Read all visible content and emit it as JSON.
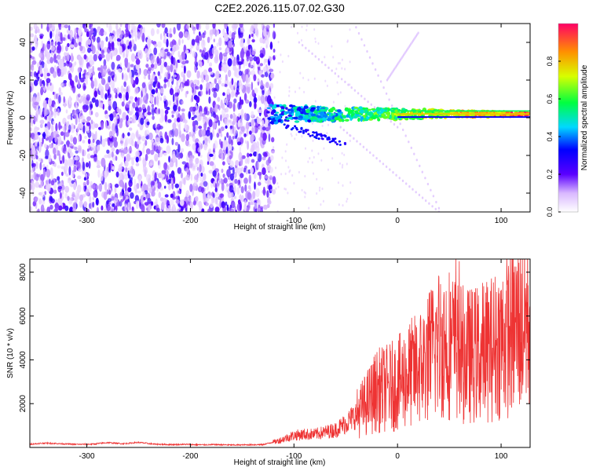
{
  "title": "C2E2.2026.115.07.02.G30",
  "chart_data": [
    {
      "type": "heatmap",
      "xlabel": "Height of straight line (km)",
      "ylabel": "Frequency (Hz)",
      "xlim": [
        -355,
        128
      ],
      "ylim": [
        -50,
        50
      ],
      "xticks": [
        -300,
        -200,
        -100,
        0,
        100
      ],
      "yticks": [
        -40,
        -20,
        0,
        20,
        40
      ],
      "colorbar": {
        "label": "Normalized spectral amplitude",
        "range": [
          0,
          1
        ],
        "ticks": [
          0.0,
          0.2,
          0.4,
          0.6,
          0.8
        ],
        "tick_labels": [
          "0.0",
          "0.2",
          "0.4",
          "0.6",
          "0.8"
        ]
      },
      "features": {
        "noise_region_x": [
          -355,
          -125
        ],
        "carrier_x": [
          -125,
          128
        ],
        "carrier_frequency_hz": 2,
        "carrier_amplitude_start": 0.35,
        "carrier_amplitude_end": 0.9
      }
    },
    {
      "type": "line",
      "xlabel": "Height of straight line (km)",
      "ylabel": "SNR (10 * v/v)",
      "xlim": [
        -355,
        128
      ],
      "ylim": [
        0,
        8600
      ],
      "xticks": [
        -300,
        -200,
        -100,
        0,
        100
      ],
      "yticks": [
        2000,
        4000,
        6000,
        8000
      ],
      "series": [
        {
          "color": "#ee3333",
          "x": [
            -355,
            -340,
            -325,
            -310,
            -295,
            -280,
            -265,
            -250,
            -235,
            -220,
            -205,
            -190,
            -175,
            -160,
            -145,
            -130,
            -115,
            -100,
            -90,
            -80,
            -70,
            -60,
            -50,
            -40,
            -30,
            -20,
            -10,
            0,
            10,
            20,
            30,
            40,
            50,
            60,
            70,
            80,
            90,
            100,
            110,
            120,
            128
          ],
          "values": [
            150,
            200,
            170,
            140,
            150,
            220,
            170,
            230,
            150,
            130,
            140,
            120,
            130,
            110,
            120,
            130,
            300,
            550,
            600,
            600,
            700,
            800,
            1100,
            1500,
            2000,
            2600,
            2700,
            2900,
            3300,
            3600,
            4100,
            4800,
            4800,
            4300,
            4200,
            4300,
            4500,
            4900,
            5300,
            5700,
            6000
          ],
          "peaks": [
            8600,
            8500,
            7600,
            7000,
            6900,
            6700
          ]
        }
      ]
    }
  ]
}
